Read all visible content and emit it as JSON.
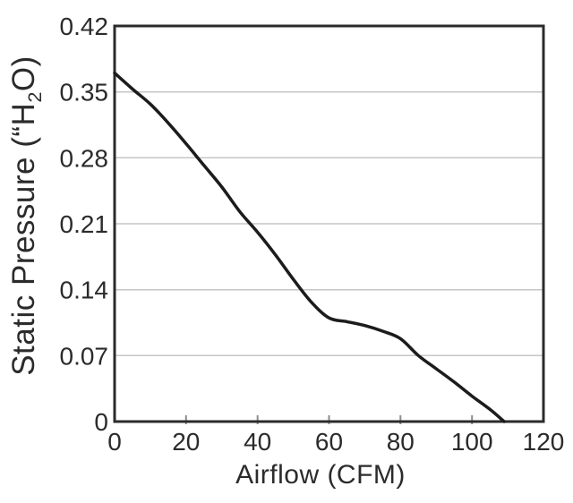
{
  "chart_data": {
    "type": "line",
    "title": "",
    "xlabel": "Airflow (CFM)",
    "ylabel": "Static Pressure (“H2O)",
    "ylabel_parts": {
      "prefix": "Static Pressure (“H",
      "sub": "2",
      "suffix": "O)"
    },
    "xlim": [
      0,
      120
    ],
    "ylim": [
      0,
      0.42
    ],
    "xticks": [
      0,
      20,
      40,
      60,
      80,
      100,
      120
    ],
    "xtick_labels": [
      "0",
      "20",
      "40",
      "60",
      "80",
      "100",
      "120"
    ],
    "yticks": [
      0,
      0.07,
      0.14,
      0.21,
      0.28,
      0.35,
      0.42
    ],
    "ytick_labels": [
      "0",
      "0.07",
      "0.14",
      "0.21",
      "0.28",
      "0.35",
      "0.42"
    ],
    "grid": {
      "horizontal": true,
      "vertical": false
    },
    "legend": "none",
    "colors": {
      "line": "#1c1c1c",
      "frame": "#2b2b2b",
      "grid": "#c6c6c6",
      "tick": "#8d8d8d",
      "text": "#2b2b2b",
      "background": "#ffffff"
    },
    "series": [
      {
        "name": "static-pressure-curve",
        "points": [
          [
            0,
            0.37
          ],
          [
            5,
            0.353
          ],
          [
            10,
            0.337
          ],
          [
            15,
            0.317
          ],
          [
            20,
            0.295
          ],
          [
            25,
            0.272
          ],
          [
            30,
            0.249
          ],
          [
            35,
            0.223
          ],
          [
            40,
            0.201
          ],
          [
            45,
            0.177
          ],
          [
            50,
            0.151
          ],
          [
            55,
            0.127
          ],
          [
            60,
            0.11
          ],
          [
            65,
            0.106
          ],
          [
            70,
            0.102
          ],
          [
            75,
            0.096
          ],
          [
            80,
            0.088
          ],
          [
            85,
            0.07
          ],
          [
            90,
            0.056
          ],
          [
            95,
            0.042
          ],
          [
            100,
            0.027
          ],
          [
            105,
            0.013
          ],
          [
            109,
            0.0
          ]
        ]
      }
    ]
  }
}
